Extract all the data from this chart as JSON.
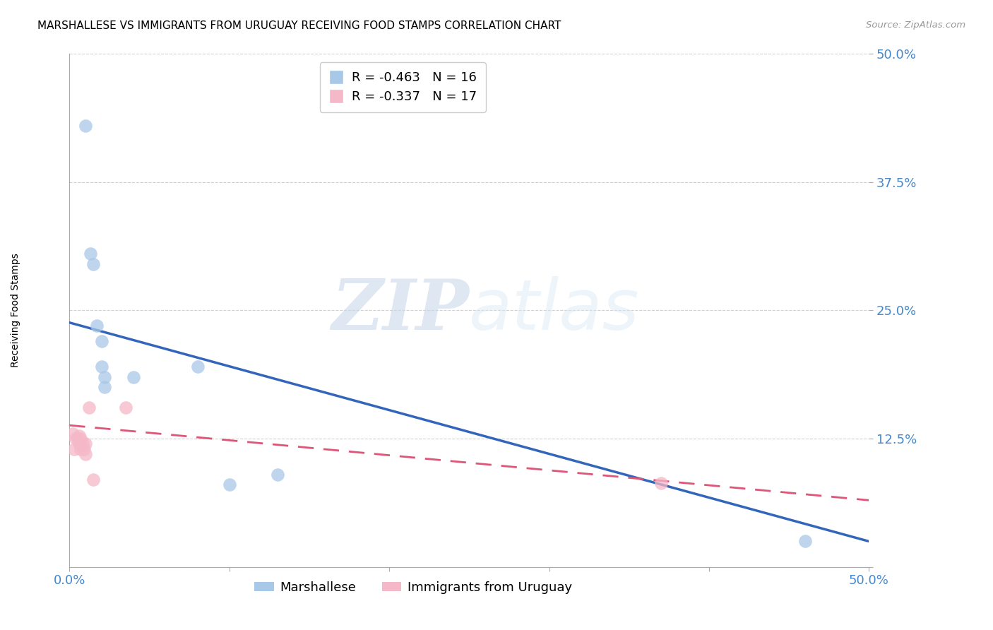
{
  "title": "MARSHALLESE VS IMMIGRANTS FROM URUGUAY RECEIVING FOOD STAMPS CORRELATION CHART",
  "source": "Source: ZipAtlas.com",
  "ylabel": "Receiving Food Stamps",
  "xlim": [
    0.0,
    0.5
  ],
  "ylim": [
    0.0,
    0.5
  ],
  "yticks": [
    0.0,
    0.125,
    0.25,
    0.375,
    0.5
  ],
  "ytick_labels": [
    "",
    "12.5%",
    "25.0%",
    "37.5%",
    "50.0%"
  ],
  "xticks": [
    0.0,
    0.1,
    0.2,
    0.3,
    0.4,
    0.5
  ],
  "xtick_labels": [
    "0.0%",
    "",
    "",
    "",
    "",
    "50.0%"
  ],
  "blue_scatter_x": [
    0.01,
    0.013,
    0.015,
    0.017,
    0.02,
    0.02,
    0.022,
    0.022,
    0.04,
    0.08,
    0.1,
    0.13,
    0.46
  ],
  "blue_scatter_y": [
    0.43,
    0.305,
    0.295,
    0.235,
    0.22,
    0.195,
    0.185,
    0.175,
    0.185,
    0.195,
    0.08,
    0.09,
    0.025
  ],
  "pink_scatter_x": [
    0.002,
    0.003,
    0.004,
    0.005,
    0.006,
    0.006,
    0.007,
    0.007,
    0.008,
    0.009,
    0.01,
    0.01,
    0.012,
    0.015,
    0.035,
    0.37
  ],
  "pink_scatter_y": [
    0.13,
    0.115,
    0.125,
    0.125,
    0.128,
    0.12,
    0.125,
    0.115,
    0.12,
    0.115,
    0.12,
    0.11,
    0.155,
    0.085,
    0.155,
    0.082
  ],
  "blue_line_x0": 0.0,
  "blue_line_y0": 0.238,
  "blue_line_x1": 0.5,
  "blue_line_y1": 0.025,
  "pink_line_x0": 0.0,
  "pink_line_y0": 0.138,
  "pink_line_x1": 0.5,
  "pink_line_y1": 0.065,
  "blue_R": -0.463,
  "blue_N": 16,
  "pink_R": -0.337,
  "pink_N": 17,
  "blue_scatter_color": "#a8c8e8",
  "pink_scatter_color": "#f5b8c8",
  "blue_line_color": "#3366bb",
  "pink_line_color": "#dd5577",
  "legend_label_blue": "Marshallese",
  "legend_label_pink": "Immigrants from Uruguay",
  "watermark_zip": "ZIP",
  "watermark_atlas": "atlas",
  "background_color": "#ffffff",
  "title_fontsize": 11,
  "ylabel_fontsize": 10,
  "tick_label_color": "#4488cc",
  "legend_R_color": "#cc0000",
  "legend_N_color": "#3366cc"
}
